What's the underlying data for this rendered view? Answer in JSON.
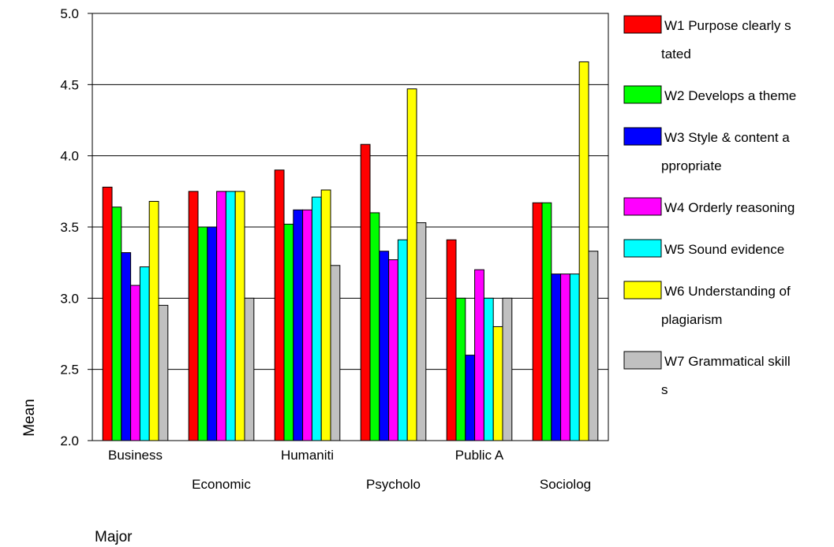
{
  "chart_data": {
    "type": "bar",
    "xlabel": "Major",
    "ylabel": "Mean",
    "ylim": [
      2.0,
      5.0
    ],
    "yticks": [
      "2.0",
      "2.5",
      "3.0",
      "3.5",
      "4.0",
      "4.5",
      "5.0"
    ],
    "grid": true,
    "legend_position": "right",
    "categories": [
      "Business",
      "Economic",
      "Humaniti",
      "Psycholo",
      "Public A",
      "Sociolog"
    ],
    "series": [
      {
        "name": "W1 Purpose clearly stated",
        "legend_lines": [
          "W1 Purpose clearly s",
          "tated"
        ],
        "color": "#ff0000",
        "values": [
          3.78,
          3.75,
          3.9,
          4.08,
          3.41,
          3.67
        ]
      },
      {
        "name": "W2 Develops a theme",
        "legend_lines": [
          "W2 Develops a theme"
        ],
        "color": "#00ff00",
        "values": [
          3.64,
          3.5,
          3.52,
          3.6,
          3.0,
          3.67
        ]
      },
      {
        "name": "W3 Style & content appropriate",
        "legend_lines": [
          "W3 Style & content a",
          "ppropriate"
        ],
        "color": "#0000ff",
        "values": [
          3.32,
          3.5,
          3.62,
          3.33,
          2.6,
          3.17
        ]
      },
      {
        "name": "W4 Orderly reasoning",
        "legend_lines": [
          "W4 Orderly reasoning"
        ],
        "color": "#ff00ff",
        "values": [
          3.09,
          3.75,
          3.62,
          3.27,
          3.2,
          3.17
        ]
      },
      {
        "name": "W5 Sound evidence",
        "legend_lines": [
          "W5 Sound evidence"
        ],
        "color": "#00ffff",
        "values": [
          3.22,
          3.75,
          3.71,
          3.41,
          3.0,
          3.17
        ]
      },
      {
        "name": "W6 Understanding of plagiarism",
        "legend_lines": [
          "W6 Understanding of",
          "plagiarism"
        ],
        "color": "#ffff00",
        "values": [
          3.68,
          3.75,
          3.76,
          4.47,
          2.8,
          4.66
        ]
      },
      {
        "name": "W7 Grammatical skills",
        "legend_lines": [
          "W7 Grammatical skill",
          "s"
        ],
        "color": "#c0c0c0",
        "values": [
          2.95,
          3.0,
          3.23,
          3.53,
          3.0,
          3.33
        ]
      }
    ]
  }
}
